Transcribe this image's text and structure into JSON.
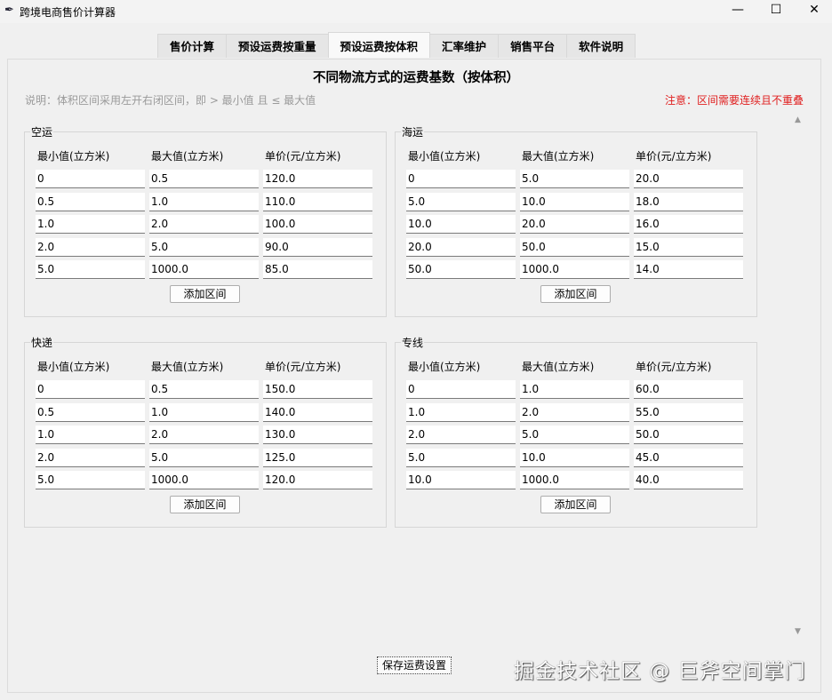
{
  "window": {
    "title": "跨境电商售价计算器",
    "minimize": "—",
    "maximize": "☐",
    "close": "✕",
    "icon": "feather-icon"
  },
  "tabs": [
    {
      "label": "售价计算"
    },
    {
      "label": "预设运费按重量"
    },
    {
      "label": "预设运费按体积",
      "active": true
    },
    {
      "label": "汇率维护"
    },
    {
      "label": "销售平台"
    },
    {
      "label": "软件说明"
    }
  ],
  "heading": "不同物流方式的运费基数（按体积）",
  "note": "说明：体积区间采用左开右闭区间，即 > 最小值 且 ≤ 最大值",
  "warning": "注意：区间需要连续且不重叠",
  "warning_color": "#e02020",
  "columns": [
    "最小值(立方米)",
    "最大值(立方米)",
    "单价(元/立方米)"
  ],
  "add_label": "添加区间",
  "groups": [
    {
      "name": "空运",
      "rows": [
        [
          "0",
          "0.5",
          "120.0"
        ],
        [
          "0.5",
          "1.0",
          "110.0"
        ],
        [
          "1.0",
          "2.0",
          "100.0"
        ],
        [
          "2.0",
          "5.0",
          "90.0"
        ],
        [
          "5.0",
          "1000.0",
          "85.0"
        ]
      ]
    },
    {
      "name": "海运",
      "rows": [
        [
          "0",
          "5.0",
          "20.0"
        ],
        [
          "5.0",
          "10.0",
          "18.0"
        ],
        [
          "10.0",
          "20.0",
          "16.0"
        ],
        [
          "20.0",
          "50.0",
          "15.0"
        ],
        [
          "50.0",
          "1000.0",
          "14.0"
        ]
      ]
    },
    {
      "name": "快递",
      "rows": [
        [
          "0",
          "0.5",
          "150.0"
        ],
        [
          "0.5",
          "1.0",
          "140.0"
        ],
        [
          "1.0",
          "2.0",
          "130.0"
        ],
        [
          "2.0",
          "5.0",
          "125.0"
        ],
        [
          "5.0",
          "1000.0",
          "120.0"
        ]
      ]
    },
    {
      "name": "专线",
      "rows": [
        [
          "0",
          "1.0",
          "60.0"
        ],
        [
          "1.0",
          "2.0",
          "55.0"
        ],
        [
          "2.0",
          "5.0",
          "50.0"
        ],
        [
          "5.0",
          "10.0",
          "45.0"
        ],
        [
          "10.0",
          "1000.0",
          "40.0"
        ]
      ]
    }
  ],
  "save_label": "保存运费设置",
  "watermark": "掘金技术社区 @ 巨斧空间掌门"
}
